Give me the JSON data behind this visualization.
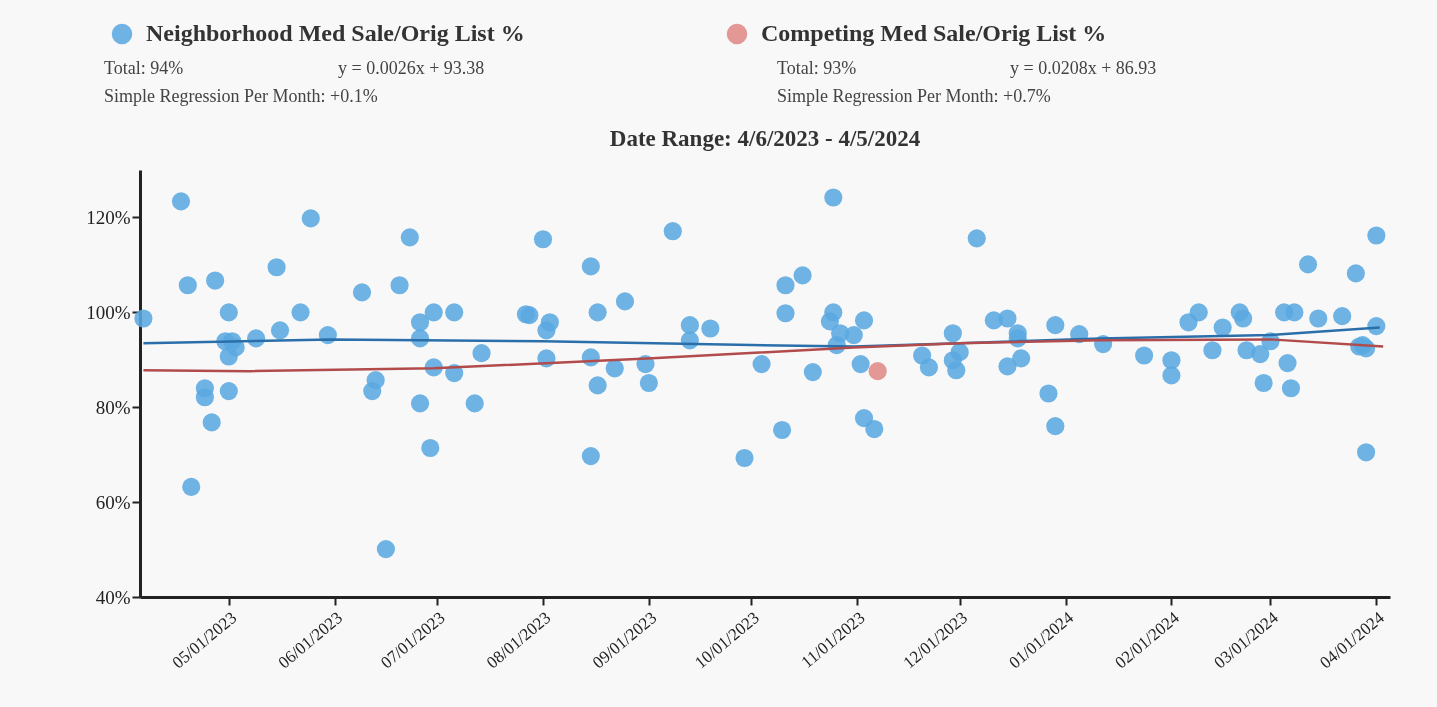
{
  "chart_data": {
    "type": "scatter",
    "title": "Date Range: 4/6/2023 - 4/5/2024",
    "annotations": [
      "Total: 94%",
      "y = 0.0026x + 93.38",
      "Simple Regression Per Month: +0.1%",
      "Total: 93%",
      "y = 0.0208x + 86.93",
      "Simple Regression Per Month: +0.7%"
    ],
    "xlim": [
      "2023-04-05",
      "2024-04-05"
    ],
    "xticks": [
      {
        "value": "2023-05-01",
        "label": "05/01/2023"
      },
      {
        "value": "2023-06-01",
        "label": "06/01/2023"
      },
      {
        "value": "2023-07-01",
        "label": "07/01/2023"
      },
      {
        "value": "2023-08-01",
        "label": "08/01/2023"
      },
      {
        "value": "2023-09-01",
        "label": "09/01/2023"
      },
      {
        "value": "2023-10-01",
        "label": "10/01/2023"
      },
      {
        "value": "2023-11-01",
        "label": "11/01/2023"
      },
      {
        "value": "2023-12-01",
        "label": "12/01/2023"
      },
      {
        "value": "2024-01-01",
        "label": "01/01/2024"
      },
      {
        "value": "2024-02-01",
        "label": "02/01/2024"
      },
      {
        "value": "2024-03-01",
        "label": "03/01/2024"
      },
      {
        "value": "2024-04-01",
        "label": "04/01/2024"
      }
    ],
    "ylim": [
      40,
      130
    ],
    "yticks": [
      {
        "value": 40,
        "label": "40%"
      },
      {
        "value": 60,
        "label": "60%"
      },
      {
        "value": 80,
        "label": "80%"
      },
      {
        "value": 100,
        "label": "100%"
      },
      {
        "value": 120,
        "label": "120%"
      }
    ],
    "grid": false,
    "legend": "top",
    "line_style": "solid",
    "series": [
      {
        "name": "Neighborhood Med Sale/Orig List %",
        "color": "#5aa9e0",
        "marker": "circle",
        "x": [
          "2023-04-06",
          "2023-04-17",
          "2023-04-19",
          "2023-04-20",
          "2023-04-24",
          "2023-04-24",
          "2023-04-26",
          "2023-04-27",
          "2023-05-01",
          "2023-04-30",
          "2023-05-02",
          "2023-05-03",
          "2023-05-01",
          "2023-05-01",
          "2023-05-09",
          "2023-05-16",
          "2023-05-15",
          "2023-05-22",
          "2023-05-25",
          "2023-05-30",
          "2023-06-09",
          "2023-06-12",
          "2023-06-13",
          "2023-06-16",
          "2023-06-20",
          "2023-06-23",
          "2023-06-26",
          "2023-06-26",
          "2023-06-26",
          "2023-06-30",
          "2023-06-30",
          "2023-06-29",
          "2023-07-06",
          "2023-07-06",
          "2023-07-12",
          "2023-07-14",
          "2023-07-27",
          "2023-07-28",
          "2023-08-01",
          "2023-08-02",
          "2023-08-03",
          "2023-08-02",
          "2023-08-15",
          "2023-08-15",
          "2023-08-17",
          "2023-08-17",
          "2023-08-15",
          "2023-08-22",
          "2023-08-25",
          "2023-08-31",
          "2023-09-01",
          "2023-09-08",
          "2023-09-13",
          "2023-09-13",
          "2023-09-19",
          "2023-09-29",
          "2023-10-04",
          "2023-10-10",
          "2023-10-11",
          "2023-10-11",
          "2023-10-16",
          "2023-10-19",
          "2023-10-25",
          "2023-10-25",
          "2023-10-24",
          "2023-10-27",
          "2023-10-26",
          "2023-10-31",
          "2023-11-03",
          "2023-11-02",
          "2023-11-03",
          "2023-11-06",
          "2023-11-20",
          "2023-11-22",
          "2023-11-29",
          "2023-11-29",
          "2023-12-01",
          "2023-11-30",
          "2023-12-06",
          "2023-12-11",
          "2023-12-15",
          "2023-12-15",
          "2023-12-18",
          "2023-12-18",
          "2023-12-19",
          "2023-12-27",
          "2023-12-29",
          "2023-12-29",
          "2024-01-05",
          "2024-01-12",
          "2024-01-24",
          "2024-02-01",
          "2024-02-01",
          "2024-02-06",
          "2024-02-09",
          "2024-02-13",
          "2024-02-16",
          "2024-02-21",
          "2024-02-22",
          "2024-02-23",
          "2024-02-27",
          "2024-02-28",
          "2024-03-01",
          "2024-03-05",
          "2024-03-06",
          "2024-03-07",
          "2024-03-08",
          "2024-03-12",
          "2024-03-15",
          "2024-03-22",
          "2024-03-26",
          "2024-03-27",
          "2024-03-28",
          "2024-03-29",
          "2024-03-29",
          "2024-04-01",
          "2024-04-01"
        ],
        "values": [
          98.7,
          123.4,
          105.7,
          63.2,
          84.0,
          82.1,
          76.8,
          106.7,
          100,
          93.9,
          93.9,
          92.6,
          90.7,
          83.4,
          94.5,
          96.2,
          109.5,
          100,
          119.8,
          95.2,
          104.2,
          83.4,
          85.7,
          50.1,
          105.7,
          115.8,
          97.9,
          94.5,
          80.8,
          100,
          88.4,
          71.4,
          100,
          87.2,
          80.8,
          91.4,
          99.6,
          99.4,
          115.4,
          96.2,
          97.9,
          90.3,
          109.7,
          90.5,
          100,
          84.6,
          69.7,
          88.2,
          102.3,
          89.1,
          85.1,
          117.1,
          97.3,
          94.1,
          96.6,
          69.3,
          89.1,
          75.2,
          105.7,
          99.8,
          107.8,
          87.4,
          124.2,
          100,
          98.1,
          95.6,
          93.1,
          95.2,
          98.3,
          89.1,
          77.7,
          75.4,
          90.9,
          88.4,
          95.6,
          89.9,
          91.6,
          87.8,
          115.6,
          98.3,
          98.7,
          88.6,
          95.6,
          94.5,
          90.3,
          82.9,
          97.3,
          76.0,
          95.4,
          93.3,
          90.9,
          89.9,
          86.7,
          97.9,
          100,
          92.0,
          96.8,
          100,
          98.7,
          92.0,
          91.2,
          85.1,
          93.9,
          100,
          89.3,
          84.0,
          100,
          110.1,
          98.7,
          99.2,
          108.2,
          92.8,
          93.1,
          92.4,
          70.5,
          116.2,
          97.1
        ]
      },
      {
        "name": "Competing Med Sale/Orig List %",
        "color": "#e08a86",
        "marker": "circle",
        "x": [
          "2023-11-07"
        ],
        "values": [
          87.6
        ]
      },
      {
        "type": "line",
        "color": "#2b6faa",
        "marker": "none",
        "x": [
          "2023-04-06",
          "2023-05-31",
          "2023-08-01",
          "2023-10-01",
          "2023-10-31",
          "2023-12-01",
          "2024-01-11",
          "2024-03-01",
          "2024-04-02"
        ],
        "values": [
          93.5,
          94.3,
          93.9,
          93.1,
          92.8,
          93.5,
          94.5,
          95.2,
          96.8
        ]
      },
      {
        "type": "line",
        "color": "#b24c4c",
        "marker": "none",
        "x": [
          "2023-04-06",
          "2023-05-07",
          "2023-06-30",
          "2023-09-02",
          "2023-10-31",
          "2023-12-01",
          "2024-01-11",
          "2024-03-01",
          "2024-04-03"
        ],
        "values": [
          87.8,
          87.6,
          88.2,
          90.3,
          92.6,
          93.5,
          94.1,
          94.3,
          92.8
        ]
      }
    ]
  }
}
